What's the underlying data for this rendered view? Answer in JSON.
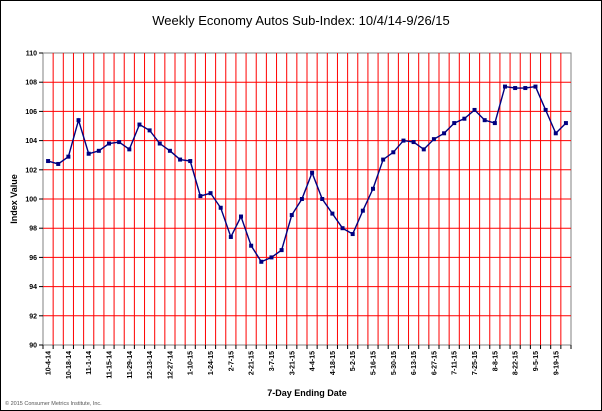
{
  "chart_data": {
    "type": "line",
    "title": "Weekly Economy Autos Sub-Index: 10/4/14-9/26/15",
    "xlabel": "7-Day Ending Date",
    "ylabel": "Index Value",
    "ylim": [
      90,
      110
    ],
    "yticks": [
      90,
      92,
      94,
      96,
      98,
      100,
      102,
      104,
      106,
      108,
      110
    ],
    "grid": true,
    "legend": "none",
    "x_tick_labels": [
      "10-4-14",
      "10-18-14",
      "11-1-14",
      "11-15-14",
      "11-29-14",
      "12-13-14",
      "12-27-14",
      "1-10-15",
      "1-24-15",
      "2-7-15",
      "2-21-15",
      "3-7-15",
      "3-21-15",
      "4-4-15",
      "4-18-15",
      "5-2-15",
      "5-16-15",
      "5-30-15",
      "6-13-15",
      "6-27-15",
      "7-11-15",
      "7-25-15",
      "8-8-15",
      "8-22-15",
      "9-5-15",
      "9-19-15"
    ],
    "x": [
      "10-4-14",
      "10-11-14",
      "10-18-14",
      "10-25-14",
      "11-1-14",
      "11-8-14",
      "11-15-14",
      "11-22-14",
      "11-29-14",
      "12-6-14",
      "12-13-14",
      "12-20-14",
      "12-27-14",
      "1-3-15",
      "1-10-15",
      "1-17-15",
      "1-24-15",
      "1-31-15",
      "2-7-15",
      "2-14-15",
      "2-21-15",
      "2-28-15",
      "3-7-15",
      "3-14-15",
      "3-21-15",
      "3-28-15",
      "4-4-15",
      "4-11-15",
      "4-18-15",
      "4-25-15",
      "5-2-15",
      "5-9-15",
      "5-16-15",
      "5-23-15",
      "5-30-15",
      "6-6-15",
      "6-13-15",
      "6-20-15",
      "6-27-15",
      "7-4-15",
      "7-11-15",
      "7-18-15",
      "7-25-15",
      "8-1-15",
      "8-8-15",
      "8-15-15",
      "8-22-15",
      "8-29-15",
      "9-5-15",
      "9-12-15",
      "9-19-15",
      "9-26-15"
    ],
    "series": [
      {
        "color": "#000080",
        "marker": "square",
        "values": [
          102.6,
          102.4,
          102.9,
          105.4,
          103.1,
          103.3,
          103.8,
          103.9,
          103.4,
          105.1,
          104.7,
          103.8,
          103.3,
          102.7,
          102.6,
          100.2,
          100.4,
          99.4,
          97.4,
          98.8,
          96.8,
          95.7,
          96.0,
          96.5,
          98.9,
          100.0,
          101.8,
          100.0,
          99.0,
          98.0,
          97.6,
          99.2,
          100.7,
          102.7,
          103.2,
          104.0,
          103.9,
          103.4,
          104.1,
          104.5,
          105.2,
          105.5,
          106.1,
          105.4,
          105.2,
          107.7,
          107.6,
          107.6,
          107.7,
          106.1,
          104.5,
          105.2
        ]
      }
    ],
    "colors": {
      "grid": "#ff0000",
      "series": "#000080",
      "plot_bg": "#ffffff"
    }
  },
  "copyright": "© 2015 Consumer Metrics Institute, Inc."
}
